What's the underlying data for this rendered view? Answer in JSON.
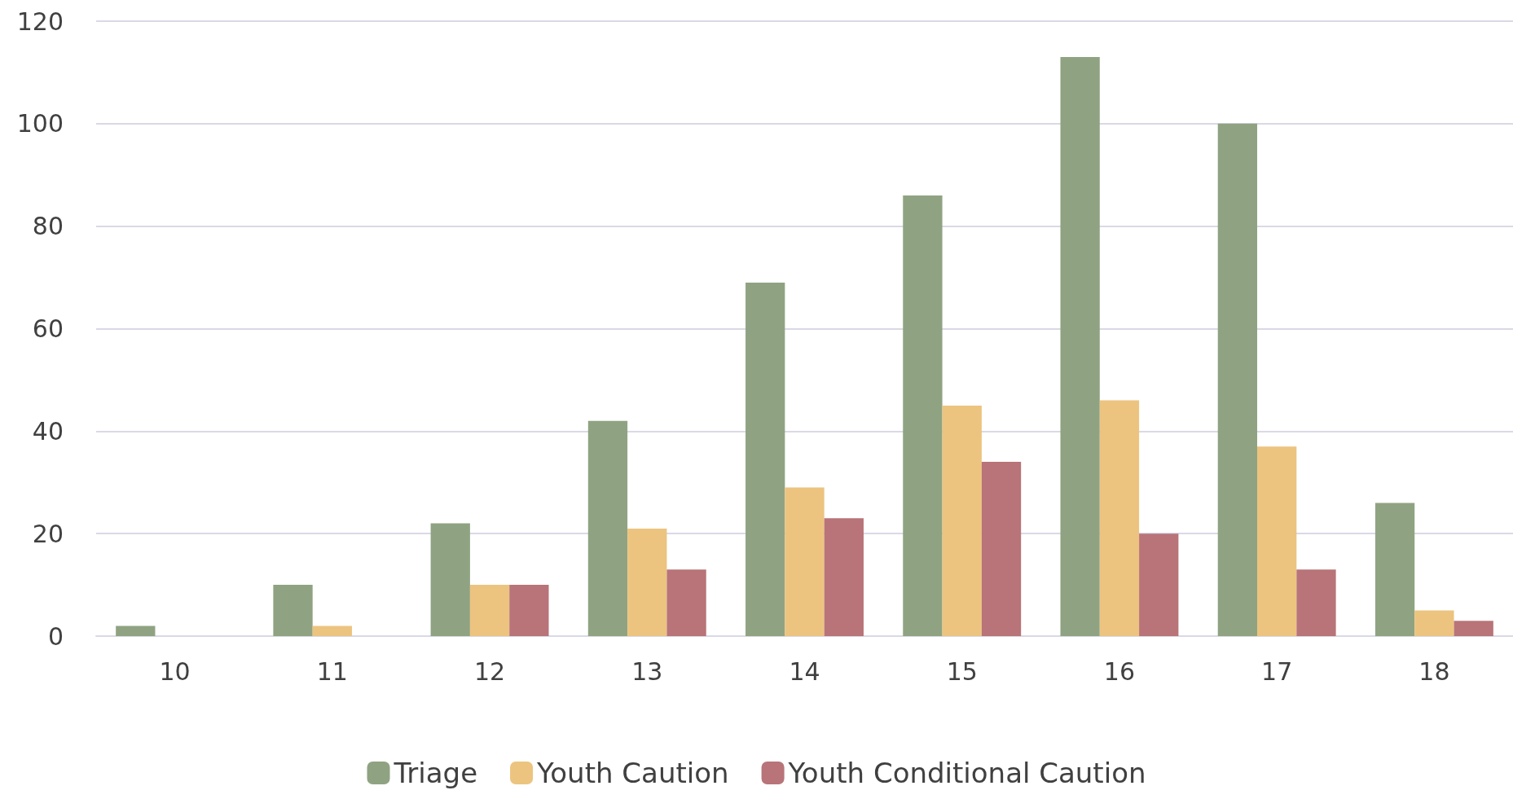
{
  "chart_data": {
    "type": "bar",
    "categories": [
      "10",
      "11",
      "12",
      "13",
      "14",
      "15",
      "16",
      "17",
      "18"
    ],
    "series": [
      {
        "name": "Triage",
        "color": "#8fa382",
        "values": [
          2,
          10,
          22,
          42,
          69,
          86,
          113,
          100,
          26
        ]
      },
      {
        "name": "Youth Caution",
        "color": "#ecc47f",
        "values": [
          0,
          2,
          10,
          21,
          29,
          45,
          46,
          37,
          5
        ]
      },
      {
        "name": "Youth Conditional Caution",
        "color": "#b87478",
        "values": [
          0,
          0,
          10,
          13,
          23,
          34,
          20,
          13,
          3
        ]
      }
    ],
    "ylim": [
      0,
      120
    ],
    "yticks": [
      0,
      20,
      40,
      60,
      80,
      100,
      120
    ],
    "grid": "y",
    "legend": "bottom"
  }
}
